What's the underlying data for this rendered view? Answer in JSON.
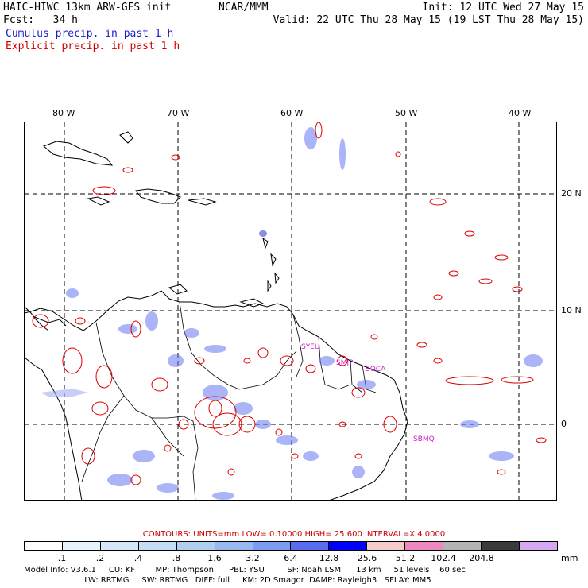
{
  "header": {
    "model_title": "HAIC-HIWC 13km ARW-GFS init",
    "center": "NCAR/MMM",
    "init": "Init: 12 UTC Wed 27 May 15",
    "fcst": "Fcst:   34 h",
    "valid": "Valid: 22 UTC Thu 28 May 15 (19 LST Thu 28 May 15)",
    "cumulus_label": "Cumulus precip. in past 1 h",
    "explicit_label": "Explicit precip. in past 1 h"
  },
  "colors": {
    "cumulus": "#1a1acc",
    "explicit": "#cc0000",
    "city": "#cc22cc"
  },
  "map": {
    "lon_labels": [
      "80 W",
      "70 W",
      "60 W",
      "50 W",
      "40 W"
    ],
    "lat_labels": [
      "20 N",
      "10 N",
      "0"
    ],
    "cities": [
      "SYEU",
      "SMJP",
      "SOCA",
      "SBMQ"
    ]
  },
  "contours": {
    "text": "CONTOURS:  UNITS=mm  LOW= 0.10000       HIGH=  25.600       INTERVAL=X  4.0000"
  },
  "colorbar": {
    "colors": [
      "#ffffff",
      "#e8f2fb",
      "#d6e8f8",
      "#c4dcf6",
      "#b0ceef",
      "#98b8ee",
      "#7c9cf0",
      "#5a6cf0",
      "#0000ff",
      "#f4cccc",
      "#ee88c0",
      "#b4b4b4",
      "#3a3a3a",
      "#d6a8f4"
    ],
    "ticks": [
      ".1",
      ".2",
      ".4",
      ".8",
      "1.6",
      "3.2",
      "6.4",
      "12.8",
      "25.6",
      "51.2",
      "102.4",
      "204.8"
    ],
    "units": "mm"
  },
  "model_info": {
    "line1": "Model Info: V3.6.1     CU: KF        MP: Thompson      PBL: YSU         SF: Noah LSM      13 km     51 levels    60 sec",
    "line2": "                        LW: RRTMG     SW: RRTMG   DIFF: full     KM: 2D Smagor  DAMP: Rayleigh3   SFLAY: MM5"
  }
}
